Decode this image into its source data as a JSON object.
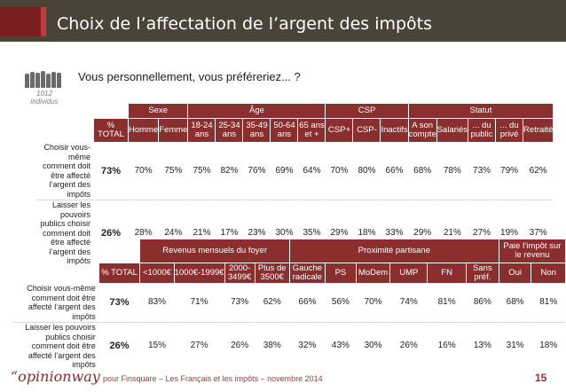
{
  "title": "Choix de l’affectation de l’argent des impôts",
  "question": "Vous personnellement, vous préféreriez... ?",
  "sample": {
    "count": "1012",
    "label": "individus"
  },
  "colors": {
    "title_bar": "#4a4338",
    "header": "#8a2e2e",
    "accent": "#c23b3b",
    "brand": "#8b2a2a"
  },
  "table1": {
    "groups": [
      "Sexe",
      "Âge",
      "CSP",
      "Statut"
    ],
    "columns": [
      "% TOTAL",
      "Homme",
      "Femme",
      "18-24 ans",
      "25-34 ans",
      "35-49 ans",
      "50-64 ans",
      "65 ans et +",
      "CSP+",
      "CSP-",
      "Inactifs",
      "A son compte",
      "Salariés",
      "... du public",
      "... du privé",
      "Retraité"
    ],
    "rows": [
      {
        "label": "Choisir vous-même comment doit être affecté l’argent des impôts",
        "total": "73%",
        "values": [
          "70%",
          "75%",
          "75%",
          "82%",
          "76%",
          "69%",
          "64%",
          "70%",
          "80%",
          "66%",
          "68%",
          "78%",
          "73%",
          "79%",
          "62%"
        ]
      },
      {
        "label": "Laisser les pouvoirs publics choisir comment doit être affecté l’argent des impôts",
        "total": "26%",
        "values": [
          "28%",
          "24%",
          "21%",
          "17%",
          "23%",
          "30%",
          "35%",
          "29%",
          "18%",
          "33%",
          "29%",
          "21%",
          "27%",
          "19%",
          "37%"
        ]
      }
    ]
  },
  "table2": {
    "groups": [
      "Revenus mensuels du foyer",
      "Proximité partisane",
      "Paie l’impôt sur le revenu"
    ],
    "columns": [
      "% TOTAL",
      "<1000€",
      "1000€-1999€",
      "2000-3499€",
      "Plus de 3500€",
      "Gauche radicale",
      "PS",
      "MoDem",
      "UMP",
      "FN",
      "Sans préf.",
      "Oui",
      "Non"
    ],
    "rows": [
      {
        "label": "Choisir vous-même comment doit être affecté l’argent des impôts",
        "total": "73%",
        "values": [
          "83%",
          "71%",
          "73%",
          "62%",
          "66%",
          "56%",
          "70%",
          "74%",
          "81%",
          "86%",
          "68%",
          "81%"
        ]
      },
      {
        "label": "Laisser les pouvoirs publics choisir comment doit être affecté l’argent des impôts",
        "total": "26%",
        "values": [
          "15%",
          "27%",
          "26%",
          "38%",
          "32%",
          "43%",
          "30%",
          "26%",
          "16%",
          "13%",
          "31%",
          "18%"
        ]
      }
    ]
  },
  "footer": {
    "logo": "“opinionway",
    "text": "pour Finsquare – Les Français et les impôts – novembre 2014",
    "page": "15"
  }
}
